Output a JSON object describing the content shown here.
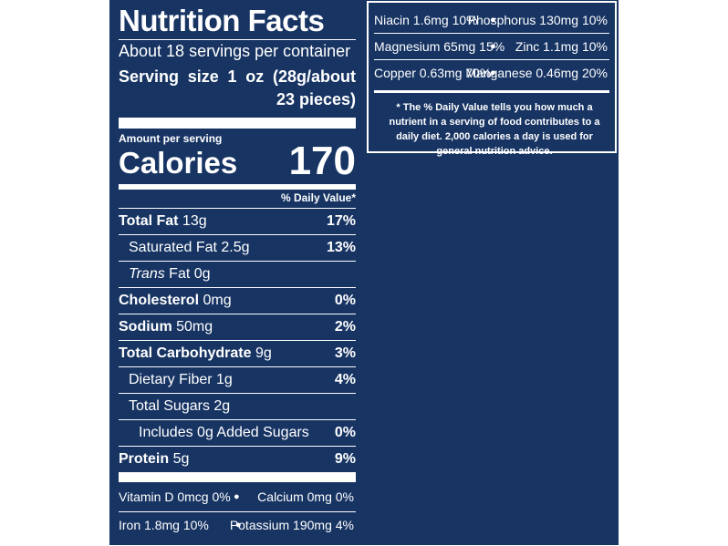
{
  "header": {
    "title": "Nutrition Facts",
    "servings": "About 18 servings per container",
    "serving_size": "Serving size 1 oz (28g/about 23 pieces)"
  },
  "calories": {
    "heading": "Amount per serving",
    "label": "Calories",
    "value": "170"
  },
  "daily_value_heading": "% Daily Value*",
  "rows": [
    {
      "label": "Total Fat",
      "amount": "13g",
      "dv": "17%",
      "bold": true,
      "indent": 0
    },
    {
      "label": "Saturated Fat",
      "amount": "2.5g",
      "dv": "13%",
      "bold": false,
      "indent": 1
    },
    {
      "italic": "Trans",
      "label": "Fat",
      "amount": "0g",
      "bold": false,
      "indent": 1
    },
    {
      "label": "Cholesterol",
      "amount": "0mg",
      "dv": "0%",
      "bold": true,
      "indent": 0
    },
    {
      "label": "Sodium",
      "amount": "50mg",
      "dv": "2%",
      "bold": true,
      "indent": 0
    },
    {
      "label": "Total Carbohydrate",
      "amount": "9g",
      "dv": "3%",
      "bold": true,
      "indent": 0
    },
    {
      "label": "Dietary Fiber",
      "amount": "1g",
      "dv": "4%",
      "bold": false,
      "indent": 1
    },
    {
      "label": "Total Sugars",
      "amount": "2g",
      "bold": false,
      "indent": 1
    },
    {
      "label": "Includes 0g Added Sugars",
      "dv": "0%",
      "bold": false,
      "indent": 2
    },
    {
      "label": "Protein",
      "amount": "5g",
      "dv": "9%",
      "bold": true,
      "indent": 0
    }
  ],
  "vitamins": [
    "Vitamin D 0mcg 0%",
    "Calcium 0mg 0%",
    "Iron 1.8mg 10%",
    "Potassium 190mg 4%"
  ],
  "minerals": [
    "Niacin 1.6mg 10%",
    "Phosphorus 130mg 10%",
    "Magnesium 65mg 15%",
    "Zinc 1.1mg 10%",
    "Copper 0.63mg 70%",
    "Manganese 0.46mg 20%"
  ],
  "footnote": "* The % Daily Value tells you how much a nutrient in a serving of food contributes to a daily diet. 2,000 calories a day is used for general nutrition advice."
}
